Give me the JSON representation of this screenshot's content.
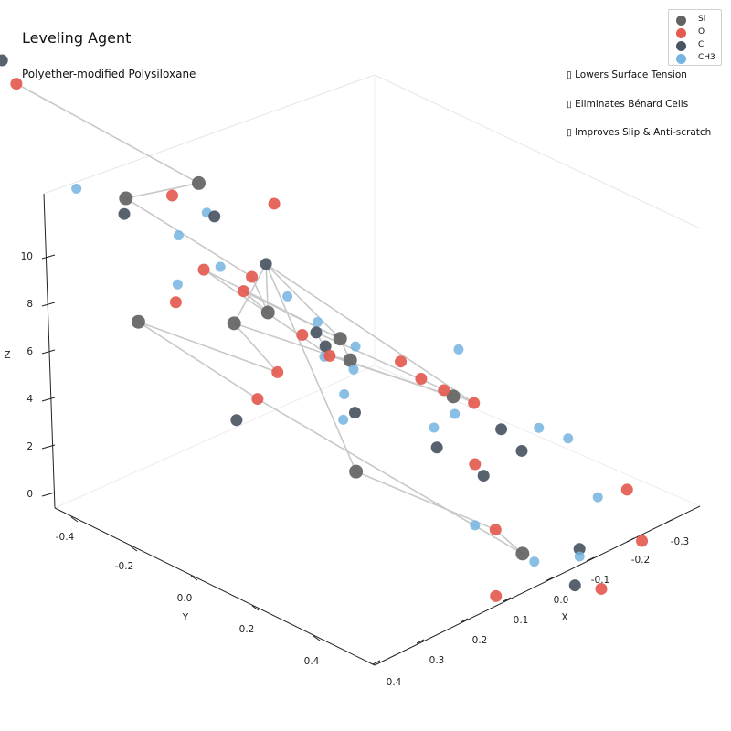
{
  "chart_title": "Leveling Agent",
  "chart_subtitle": "Polyether-modified Polysiloxane",
  "annotations": [
    "▯ Lowers Surface Tension",
    "▯ Eliminates Bénard Cells",
    "▯ Improves Slip & Anti-scratch"
  ],
  "legend": [
    {
      "label": "Si",
      "color": "#636363"
    },
    {
      "label": "O",
      "color": "#e35a4f"
    },
    {
      "label": "C",
      "color": "#4a5562"
    },
    {
      "label": "CH3",
      "color": "#74b4e0"
    }
  ],
  "chart_data": {
    "type": "scatter3d",
    "title": "Leveling Agent",
    "subtitle": "Polyether-modified Polysiloxane",
    "axes": {
      "x": {
        "label": "X",
        "ticks": [
          "-0.3",
          "-0.2",
          "-0.1",
          "0.0",
          "0.1",
          "0.2",
          "0.3",
          "0.4"
        ]
      },
      "y": {
        "label": "Y",
        "ticks": [
          "-0.4",
          "-0.2",
          "0.0",
          "0.2",
          "0.4"
        ]
      },
      "z": {
        "label": "Z",
        "ticks": [
          "0",
          "2",
          "4",
          "6",
          "8",
          "10"
        ]
      }
    },
    "grid": false,
    "legend_position": "top-right",
    "series": [
      {
        "name": "Si",
        "color": "#636363",
        "points": [
          {
            "x": 0.18,
            "y": 0.03,
            "z": 11.2
          },
          {
            "x": 0.2,
            "y": -0.22,
            "z": 8.4
          },
          {
            "x": 0.07,
            "y": -0.05,
            "z": 6.0
          },
          {
            "x": -0.1,
            "y": -0.02,
            "z": 6.5
          },
          {
            "x": -0.13,
            "y": -0.05,
            "z": 5.6
          },
          {
            "x": -0.27,
            "y": 0.1,
            "z": 6.4
          },
          {
            "x": 0.15,
            "y": -0.1,
            "z": 4.5
          },
          {
            "x": 0.25,
            "y": -0.32,
            "z": 2.0
          },
          {
            "x": 0.09,
            "y": 0.02,
            "z": -0.3
          },
          {
            "x": -0.2,
            "y": 0.16,
            "z": -0.3
          }
        ]
      },
      {
        "name": "O",
        "color": "#e35a4f",
        "points": [
          {
            "x": 0.3,
            "y": -0.31,
            "z": 11.7
          },
          {
            "x": 0.01,
            "y": 0.08,
            "z": 12.1
          },
          {
            "x": 0.14,
            "y": -0.12,
            "z": 9.8
          },
          {
            "x": 0.02,
            "y": -0.1,
            "z": 7.5
          },
          {
            "x": 0.09,
            "y": -0.18,
            "z": 6.6
          },
          {
            "x": 0.03,
            "y": -0.14,
            "z": 6.5
          },
          {
            "x": -0.2,
            "y": 0.09,
            "z": 6.5
          },
          {
            "x": -0.25,
            "y": 0.18,
            "z": 6.6
          },
          {
            "x": 0.01,
            "y": -0.03,
            "z": 5.7
          },
          {
            "x": -0.01,
            "y": 0.01,
            "z": 5.3
          },
          {
            "x": -0.09,
            "y": 0.16,
            "z": 6.9
          },
          {
            "x": -0.16,
            "y": 0.19,
            "z": 6.5
          },
          {
            "x": 0.13,
            "y": -0.05,
            "z": 3.0
          },
          {
            "x": -0.14,
            "y": 0.2,
            "z": 3.3
          },
          {
            "x": 0.09,
            "y": -0.2,
            "z": 1.0
          },
          {
            "x": 0.0,
            "y": 0.31,
            "z": 0.3
          },
          {
            "x": -0.28,
            "y": 0.29,
            "z": -0.1
          },
          {
            "x": 0.24,
            "y": -0.47,
            "z": 11.9
          },
          {
            "x": -0.41,
            "y": 0.4,
            "z": 6.0
          },
          {
            "x": -0.42,
            "y": 0.36,
            "z": 3.6
          },
          {
            "x": 0.12,
            "y": 0.33,
            "z": -3.3
          },
          {
            "x": 0.37,
            "y": -0.04,
            "z": 4.1
          }
        ]
      },
      {
        "name": "C",
        "color": "#4a5562",
        "points": [
          {
            "x": 0.4,
            "y": -0.22,
            "z": 12.6
          },
          {
            "x": 0.12,
            "y": -0.03,
            "z": 9.8
          },
          {
            "x": 0.1,
            "y": 0.05,
            "z": 8.6
          },
          {
            "x": 0.21,
            "y": -0.24,
            "z": 7.5
          },
          {
            "x": -0.03,
            "y": -0.02,
            "z": 6.2
          },
          {
            "x": -0.03,
            "y": -0.01,
            "z": 5.7
          },
          {
            "x": -0.32,
            "y": 0.16,
            "z": 5.9
          },
          {
            "x": -0.19,
            "y": 0.16,
            "z": 2.9
          },
          {
            "x": 0.16,
            "y": 0.18,
            "z": 2.9
          },
          {
            "x": -0.22,
            "y": 0.34,
            "z": 1.5
          },
          {
            "x": 0.36,
            "y": -0.38,
            "z": 9.3
          },
          {
            "x": -0.1,
            "y": 0.42,
            "z": 5.3
          },
          {
            "x": 0.0,
            "y": 0.24,
            "z": 3.2
          },
          {
            "x": -0.11,
            "y": 0.38,
            "z": -0.6
          },
          {
            "x": 0.3,
            "y": -0.09,
            "z": -0.7
          }
        ]
      },
      {
        "name": "CH3",
        "color": "#74b4e0",
        "points": [
          {
            "x": 0.12,
            "y": -0.05,
            "z": 9.8
          },
          {
            "x": 0.17,
            "y": -0.13,
            "z": 7.8
          },
          {
            "x": 0.01,
            "y": -0.02,
            "z": 7.4
          },
          {
            "x": 0.06,
            "y": -0.15,
            "z": 7.2
          },
          {
            "x": -0.08,
            "y": -0.05,
            "z": 6.8
          },
          {
            "x": -0.12,
            "y": 0.0,
            "z": 6.5
          },
          {
            "x": 0.02,
            "y": 0.1,
            "z": 5.2
          },
          {
            "x": -0.02,
            "y": -0.02,
            "z": 5.1
          },
          {
            "x": -0.15,
            "y": 0.2,
            "z": 5.5
          },
          {
            "x": 0.17,
            "y": -0.21,
            "z": 5.1
          },
          {
            "x": -0.06,
            "y": 0.2,
            "z": 4.2
          },
          {
            "x": 0.04,
            "y": 0.05,
            "z": 3.6
          },
          {
            "x": -0.31,
            "y": 0.3,
            "z": 7.0
          },
          {
            "x": -0.34,
            "y": 0.12,
            "z": 9.1
          },
          {
            "x": 0.33,
            "y": -0.24,
            "z": 7.6
          },
          {
            "x": 0.13,
            "y": 0.38,
            "z": 0.0
          },
          {
            "x": -0.08,
            "y": 0.31,
            "z": -0.4
          },
          {
            "x": -0.14,
            "y": 0.41,
            "z": 1.1
          },
          {
            "x": 0.2,
            "y": 0.17,
            "z": 2.2
          },
          {
            "x": -0.36,
            "y": 0.34,
            "z": 4.8
          },
          {
            "x": -0.43,
            "y": 0.26,
            "z": 7.2
          }
        ]
      }
    ]
  }
}
